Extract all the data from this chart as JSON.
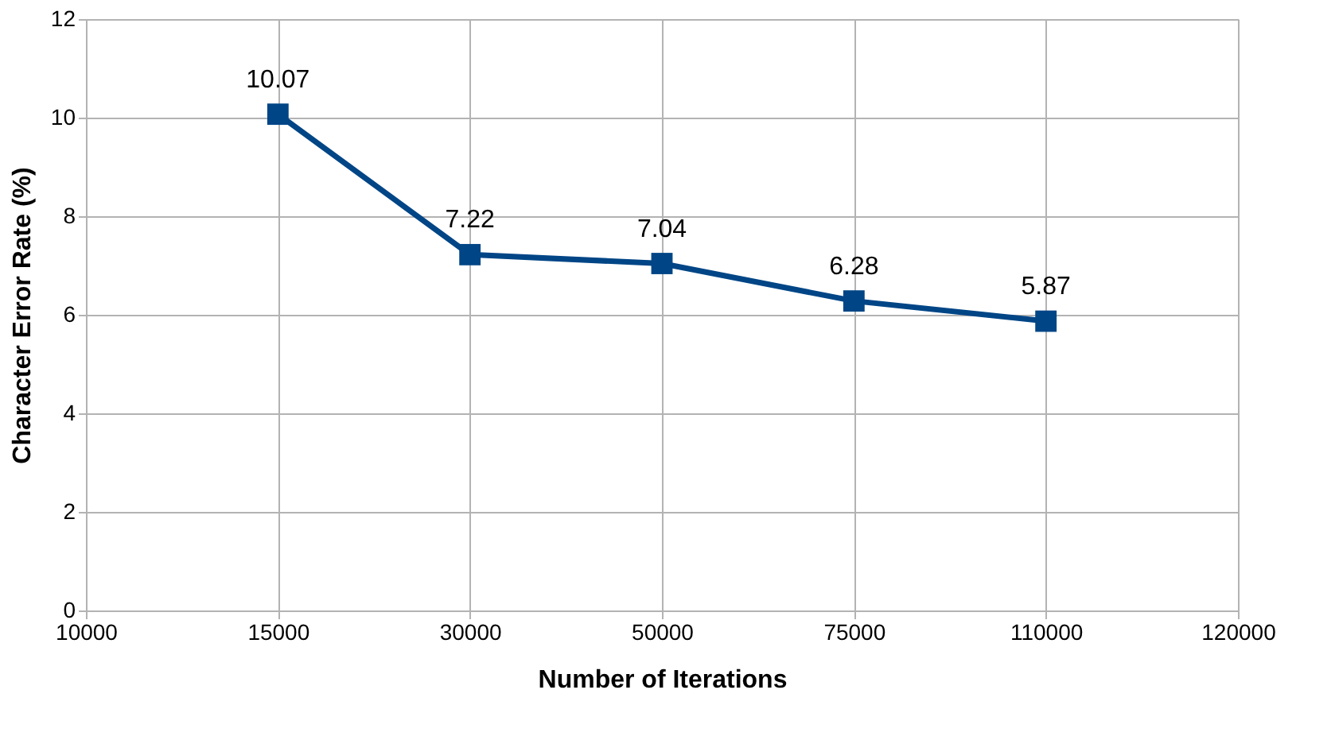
{
  "chart_data": {
    "type": "line",
    "xlabel": "Number of Iterations",
    "ylabel": "Character Error Rate (%)",
    "categories": [
      "10000",
      "15000",
      "30000",
      "50000",
      "75000",
      "110000",
      "120000"
    ],
    "series": [
      {
        "color": "#004586",
        "values": [
          null,
          10.07,
          7.22,
          7.04,
          6.28,
          5.87,
          null
        ]
      }
    ],
    "ylim": [
      0,
      12
    ],
    "yticks": [
      0,
      2,
      4,
      6,
      8,
      10,
      12
    ],
    "grid": true,
    "marker": "square",
    "line_style": "solid",
    "data_labels": true
  }
}
